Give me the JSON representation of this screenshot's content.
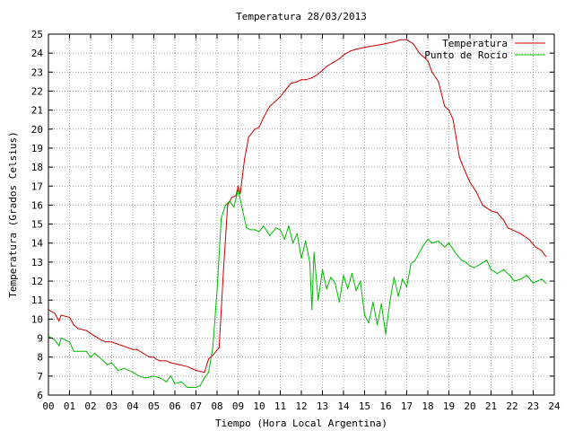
{
  "chart_data": {
    "type": "line",
    "title": "Temperatura 28/03/2013",
    "xlabel": "Tiempo (Hora Local Argentina)",
    "ylabel": "Temperatura (Grados Celsius)",
    "xlim": [
      0,
      24
    ],
    "ylim": [
      6,
      25
    ],
    "x_ticks": [
      "00",
      "01",
      "02",
      "03",
      "04",
      "05",
      "06",
      "07",
      "08",
      "09",
      "10",
      "11",
      "12",
      "13",
      "14",
      "15",
      "16",
      "17",
      "18",
      "19",
      "20",
      "21",
      "22",
      "23",
      "24"
    ],
    "y_ticks": [
      "6",
      "7",
      "8",
      "9",
      "10",
      "11",
      "12",
      "13",
      "14",
      "15",
      "16",
      "17",
      "18",
      "19",
      "20",
      "21",
      "22",
      "23",
      "24",
      "25"
    ],
    "grid": true,
    "legend_position": "top-right",
    "series": [
      {
        "name": "Temperatura",
        "color": "#cc0000",
        "x": [
          0.0,
          0.3,
          0.5,
          0.6,
          1.0,
          1.2,
          1.4,
          1.8,
          2.2,
          2.5,
          2.7,
          3.0,
          3.5,
          4.0,
          4.2,
          4.5,
          4.8,
          5.0,
          5.1,
          5.3,
          5.6,
          5.8,
          6.2,
          6.6,
          7.0,
          7.4,
          7.6,
          7.8,
          8.1,
          8.3,
          8.5,
          8.7,
          8.9,
          9.0,
          9.1,
          9.3,
          9.5,
          9.8,
          10.0,
          10.2,
          10.5,
          10.8,
          11.0,
          11.2,
          11.5,
          11.8,
          12.0,
          12.2,
          12.5,
          12.8,
          13.0,
          13.2,
          13.5,
          13.8,
          14.0,
          14.3,
          14.6,
          15.0,
          15.5,
          16.0,
          16.4,
          16.7,
          17.0,
          17.3,
          17.6,
          17.8,
          18.0,
          18.2,
          18.5,
          18.8,
          19.0,
          19.2,
          19.5,
          19.8,
          20.0,
          20.3,
          20.6,
          21.0,
          21.3,
          21.6,
          21.8,
          22.0,
          22.4,
          22.8,
          23.1,
          23.4,
          23.6
        ],
        "values": [
          10.5,
          10.3,
          9.9,
          10.2,
          10.1,
          9.7,
          9.5,
          9.4,
          9.1,
          8.9,
          8.8,
          8.8,
          8.6,
          8.4,
          8.4,
          8.2,
          8.0,
          8.0,
          7.9,
          7.8,
          7.8,
          7.7,
          7.6,
          7.5,
          7.3,
          7.2,
          7.9,
          8.1,
          8.5,
          12.5,
          16.0,
          16.4,
          16.5,
          17.0,
          16.6,
          18.4,
          19.6,
          20.0,
          20.1,
          20.6,
          21.2,
          21.5,
          21.7,
          22.0,
          22.4,
          22.5,
          22.6,
          22.6,
          22.7,
          22.9,
          23.1,
          23.3,
          23.5,
          23.7,
          23.9,
          24.1,
          24.2,
          24.3,
          24.4,
          24.5,
          24.6,
          24.7,
          24.7,
          24.5,
          24.0,
          23.8,
          23.6,
          23.0,
          22.5,
          21.2,
          21.0,
          20.5,
          18.5,
          17.7,
          17.2,
          16.7,
          16.0,
          15.7,
          15.6,
          15.2,
          14.8,
          14.7,
          14.5,
          14.2,
          13.8,
          13.6,
          13.3
        ]
      },
      {
        "name": "Punto de Rocío",
        "color": "#00bb00",
        "x": [
          0.0,
          0.3,
          0.5,
          0.6,
          1.0,
          1.2,
          1.4,
          1.8,
          2.0,
          2.2,
          2.5,
          2.8,
          3.0,
          3.3,
          3.6,
          4.0,
          4.3,
          4.6,
          5.0,
          5.3,
          5.6,
          5.8,
          6.0,
          6.3,
          6.6,
          7.0,
          7.2,
          7.4,
          7.6,
          7.8,
          8.0,
          8.2,
          8.4,
          8.6,
          8.8,
          9.0,
          9.2,
          9.4,
          9.6,
          9.8,
          10.0,
          10.2,
          10.5,
          10.8,
          11.0,
          11.2,
          11.4,
          11.6,
          11.8,
          12.0,
          12.2,
          12.4,
          12.5,
          12.6,
          12.8,
          13.0,
          13.2,
          13.4,
          13.6,
          13.8,
          14.0,
          14.2,
          14.4,
          14.6,
          14.8,
          15.0,
          15.2,
          15.4,
          15.6,
          15.8,
          16.0,
          16.1,
          16.2,
          16.4,
          16.6,
          16.8,
          17.0,
          17.2,
          17.4,
          17.6,
          17.8,
          18.0,
          18.2,
          18.5,
          18.8,
          19.0,
          19.3,
          19.6,
          19.8,
          20.0,
          20.2,
          20.5,
          20.8,
          21.0,
          21.3,
          21.6,
          21.9,
          22.1,
          22.4,
          22.7,
          23.0,
          23.2,
          23.4,
          23.6
        ],
        "values": [
          9.1,
          8.9,
          8.6,
          9.0,
          8.8,
          8.3,
          8.3,
          8.3,
          8.0,
          8.2,
          7.9,
          7.6,
          7.7,
          7.3,
          7.4,
          7.2,
          7.0,
          6.9,
          7.0,
          6.9,
          6.7,
          7.0,
          6.6,
          6.7,
          6.4,
          6.4,
          6.5,
          6.9,
          7.2,
          8.5,
          11.5,
          15.3,
          16.0,
          16.2,
          15.9,
          16.8,
          15.8,
          14.8,
          14.7,
          14.7,
          14.6,
          14.9,
          14.4,
          14.8,
          14.7,
          14.2,
          14.9,
          14.0,
          14.5,
          13.2,
          14.1,
          13.0,
          10.5,
          13.5,
          11.0,
          12.6,
          11.6,
          12.2,
          11.9,
          10.9,
          12.3,
          11.6,
          12.4,
          11.5,
          12.0,
          10.2,
          9.8,
          10.9,
          9.7,
          10.8,
          9.2,
          10.1,
          10.9,
          12.2,
          11.2,
          12.1,
          11.7,
          12.9,
          13.1,
          13.5,
          13.9,
          14.2,
          14.0,
          14.1,
          13.8,
          14.0,
          13.5,
          13.1,
          13.0,
          12.8,
          12.7,
          12.9,
          13.1,
          12.6,
          12.4,
          12.6,
          12.3,
          12.0,
          12.1,
          12.3,
          11.9,
          12.0,
          12.1,
          11.9
        ]
      }
    ]
  }
}
